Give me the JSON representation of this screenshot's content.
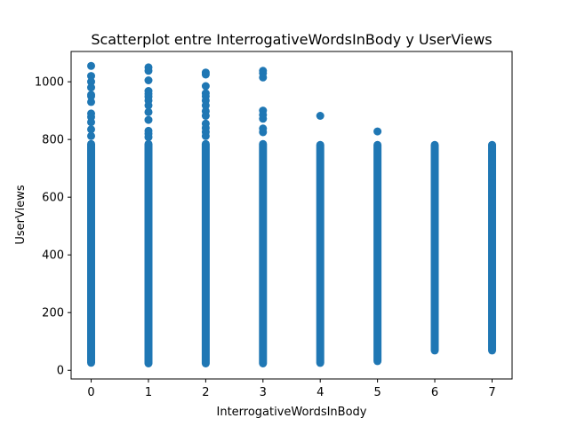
{
  "chart_data": {
    "type": "scatter",
    "title": "Scatterplot entre InterrogativeWordsInBody y UserViews",
    "xlabel": "InterrogativeWordsInBody",
    "ylabel": "UserViews",
    "xlim": [
      -0.35,
      7.35
    ],
    "ylim": [
      -30,
      1105
    ],
    "xticks": [
      0,
      1,
      2,
      3,
      4,
      5,
      6,
      7
    ],
    "yticks": [
      0,
      200,
      400,
      600,
      800,
      1000
    ],
    "grid": false,
    "legend": "none",
    "color": "#1f77b4",
    "columns": [
      {
        "x": 0,
        "dense_range": [
          12,
          798
        ],
        "outliers": [
          1055,
          1020,
          1000,
          980,
          955,
          950,
          930,
          890,
          878,
          860,
          835,
          812
        ]
      },
      {
        "x": 1,
        "dense_range": [
          10,
          798
        ],
        "outliers": [
          1050,
          1038,
          1005,
          968,
          958,
          948,
          935,
          918,
          895,
          868,
          830,
          820,
          808
        ]
      },
      {
        "x": 2,
        "dense_range": [
          10,
          798
        ],
        "outliers": [
          1032,
          1025,
          985,
          960,
          950,
          935,
          918,
          898,
          882,
          855,
          840,
          826,
          812
        ]
      },
      {
        "x": 3,
        "dense_range": [
          10,
          798
        ],
        "outliers": [
          1038,
          1030,
          1015,
          900,
          885,
          872,
          838,
          825
        ]
      },
      {
        "x": 4,
        "dense_range": [
          12,
          795
        ],
        "outliers": [
          882
        ]
      },
      {
        "x": 5,
        "dense_range": [
          18,
          795
        ],
        "outliers": [
          828
        ]
      },
      {
        "x": 6,
        "dense_range": [
          55,
          795
        ],
        "outliers": []
      },
      {
        "x": 7,
        "dense_range": [
          55,
          795
        ],
        "outliers": [
          780,
          770,
          745,
          730,
          715,
          700,
          690,
          660,
          648,
          625,
          610,
          560
        ]
      }
    ]
  }
}
